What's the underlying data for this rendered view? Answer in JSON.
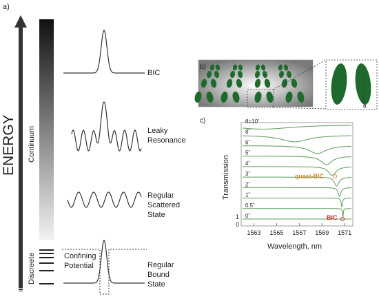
{
  "panel_a": {
    "tag": "a)",
    "energy_label": "ENERGY",
    "continuum_label": "Continuum",
    "discreete_label": "Discreete",
    "confining_potential": [
      "Confining",
      "Potential"
    ],
    "states": {
      "bic": [
        "BIC"
      ],
      "leaky": [
        "Leaky",
        "Resonance"
      ],
      "scattered": [
        "Regular",
        "Scattered",
        "State"
      ],
      "bound": [
        "Regular",
        "Bound",
        "State"
      ]
    }
  },
  "panel_b": {
    "tag": "b)",
    "theta_symbol": "θ"
  },
  "panel_c": {
    "tag": "c)",
    "ylabel": "Transmission",
    "xlabel": "Wavelength, nm",
    "x_ticks": [
      "1563",
      "1565",
      "1567",
      "1569",
      "1571"
    ],
    "y_tick_labels": [
      "1",
      "0"
    ],
    "angle_labels": [
      "θ=10˚",
      "8˚",
      "6˚",
      "5˚",
      "4˚",
      "3˚",
      "2˚",
      "1˚",
      "0.5˚",
      "0˚"
    ],
    "annotation_quasi_bic": "quasi-BIC",
    "annotation_bic": "BIC",
    "colors": {
      "curves": "#5a9a5a",
      "quasi_bic": "#c98a2e",
      "bic": "#cc2a2a"
    }
  },
  "chart_data": {
    "type": "line",
    "xlabel": "Wavelength, nm",
    "ylabel": "Transmission",
    "xlim": [
      1562,
      1571.6
    ],
    "x_ticks": [
      1563,
      1565,
      1567,
      1569,
      1571
    ],
    "series": [
      {
        "name": "θ=10˚",
        "offset": 9,
        "resonance": 1563.8,
        "width": 3.2,
        "depth": 0.5
      },
      {
        "name": "8˚",
        "offset": 8,
        "resonance": 1566.6,
        "width": 1.5,
        "depth": 0.75
      },
      {
        "name": "6˚",
        "offset": 7,
        "resonance": 1568.6,
        "width": 0.9,
        "depth": 0.9
      },
      {
        "name": "5˚",
        "offset": 6,
        "resonance": 1569.4,
        "width": 0.6,
        "depth": 0.95
      },
      {
        "name": "4˚",
        "offset": 5,
        "resonance": 1569.9,
        "width": 0.4,
        "depth": 1.0
      },
      {
        "name": "3˚",
        "offset": 4,
        "resonance": 1570.3,
        "width": 0.25,
        "depth": 1.0
      },
      {
        "name": "2˚",
        "offset": 3,
        "resonance": 1570.55,
        "width": 0.15,
        "depth": 1.0
      },
      {
        "name": "1˚",
        "offset": 2,
        "resonance": 1570.75,
        "width": 0.07,
        "depth": 1.0
      },
      {
        "name": "0.5˚",
        "offset": 1,
        "resonance": 1570.85,
        "width": 0.04,
        "depth": 1.0
      },
      {
        "name": "0˚",
        "offset": 0,
        "resonance": 1570.9,
        "width": 0.0,
        "depth": 0.0
      }
    ]
  }
}
